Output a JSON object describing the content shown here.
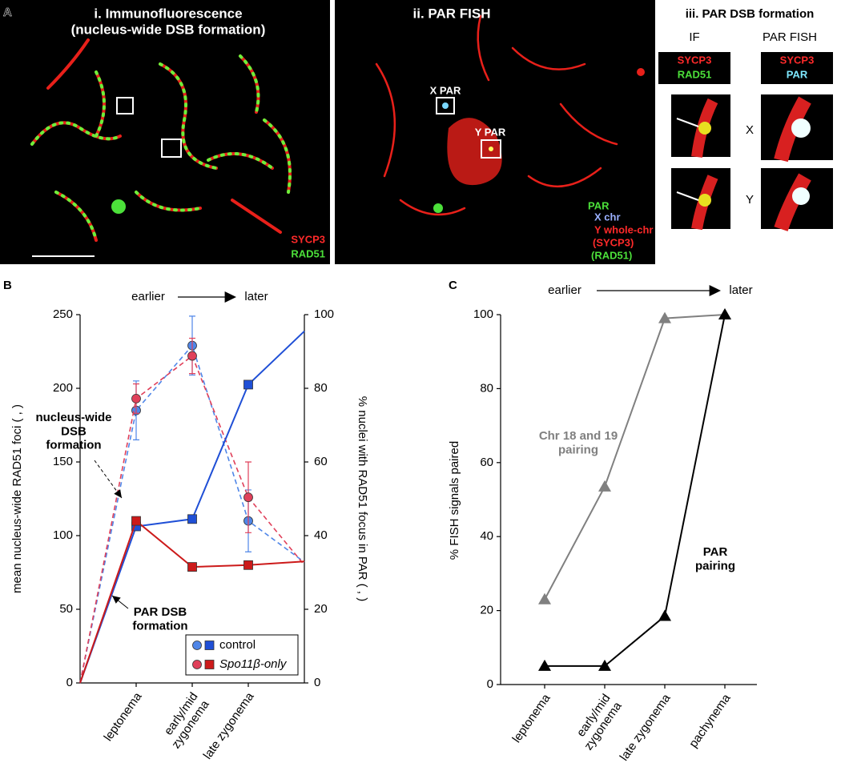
{
  "panel_a": {
    "label": "A",
    "i": {
      "title": "i. Immunofluorescence",
      "subtitle": "(nucleus-wide DSB formation)",
      "legend": [
        "SYCP3",
        "RAD51"
      ]
    },
    "ii": {
      "title": "ii. PAR FISH",
      "labels": [
        "X PAR",
        "Y PAR"
      ],
      "legend": [
        "PAR",
        "X chr",
        "Y whole-chr",
        "(SYCP3)",
        "(RAD51)"
      ]
    },
    "iii": {
      "title": "iii. PAR DSB formation",
      "columns": [
        "IF",
        "PAR FISH"
      ],
      "if_legend": [
        "SYCP3",
        "RAD51"
      ],
      "fish_legend": [
        "SYCP3",
        "PAR"
      ],
      "rows": [
        "X",
        "Y"
      ]
    }
  },
  "chart_data": [
    {
      "type": "line",
      "panel_label": "B",
      "x_arrow_labels": [
        "earlier",
        "later"
      ],
      "ylabel": "mean nucleus-wide RAD51 foci (   ,   )",
      "y2label": "% nuclei with RAD51 focus in PAR (   ,   )",
      "categories": [
        null,
        "leptonema",
        "early/mid\nzygonema",
        "late zygonema",
        null
      ],
      "ylim": [
        0,
        250
      ],
      "yticks": [
        0,
        50,
        100,
        150,
        200,
        250
      ],
      "y2lim": [
        0,
        100
      ],
      "y2ticks": [
        0,
        20,
        40,
        60,
        80,
        100
      ],
      "series": [
        {
          "name": "control",
          "color": "#4f86e8",
          "marker": "circle",
          "dashed": true,
          "values": [
            0,
            185,
            229,
            110,
            82
          ],
          "errors": [
            null,
            20,
            20,
            21,
            null
          ]
        },
        {
          "name": "Spo11β-only",
          "color": "#e0405a",
          "marker": "circle",
          "dashed": true,
          "values": [
            0,
            193,
            222,
            126,
            80
          ],
          "errors": [
            null,
            10,
            12,
            24,
            null
          ]
        },
        {
          "color": "#1f4fd6",
          "marker": "square",
          "axis": "y2",
          "values": [
            0,
            42.5,
            44.5,
            81,
            95.5
          ]
        },
        {
          "color": "#cc1a1a",
          "marker": "square",
          "axis": "y2",
          "values": [
            0,
            44,
            31.5,
            32,
            33
          ]
        }
      ],
      "annotations": [
        "nucleus-wide\nDSB\nformation",
        "PAR DSB\nformation"
      ]
    },
    {
      "type": "line",
      "panel_label": "C",
      "x_arrow_labels": [
        "earlier",
        "later"
      ],
      "ylabel": "% FISH signals paired",
      "categories": [
        "leptonema",
        "early/mid\nzygonema",
        "late zygonema",
        "pachynema"
      ],
      "ylim": [
        0,
        100
      ],
      "yticks": [
        0,
        20,
        40,
        60,
        80,
        100
      ],
      "series": [
        {
          "name": "Chr 18 and 19\npairing",
          "color": "#808080",
          "marker": "triangle",
          "values": [
            23,
            53.5,
            99,
            100
          ]
        },
        {
          "name": "PAR\npairing",
          "color": "#000000",
          "marker": "triangle",
          "values": [
            5,
            5,
            18.5,
            100
          ]
        }
      ]
    }
  ]
}
